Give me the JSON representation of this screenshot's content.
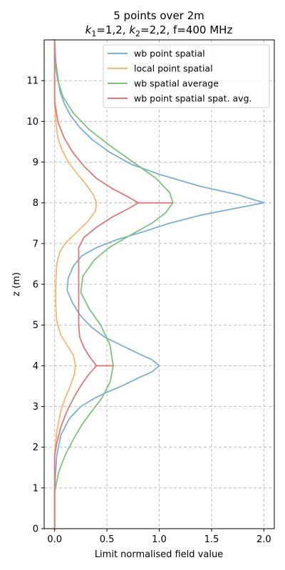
{
  "chart_data": {
    "type": "line",
    "orientation": "vertical",
    "title_line1": "5 points over 2m",
    "title_line2": "k1=1,2, k2=2,2, f=400 MHz",
    "title_parts": {
      "prefix": "",
      "k1_base": "k",
      "k1_sub": "1",
      "k1_value": "=1,2, ",
      "k2_base": "k",
      "k2_sub": "2",
      "k2_value": "=2,2, f=400 MHz"
    },
    "xlabel": "Limit normalised field value",
    "ylabel": "z (m)",
    "xlim": [
      -0.1,
      2.1
    ],
    "ylim": [
      0,
      12
    ],
    "xticks": [
      0.0,
      0.5,
      1.0,
      1.5,
      2.0
    ],
    "xtick_labels": [
      "0.0",
      "0.5",
      "1.0",
      "1.5",
      "2.0"
    ],
    "yticks": [
      0,
      1,
      2,
      3,
      4,
      5,
      6,
      7,
      8,
      9,
      10,
      11
    ],
    "ytick_labels": [
      "0",
      "1",
      "2",
      "3",
      "4",
      "5",
      "6",
      "7",
      "8",
      "9",
      "10",
      "11"
    ],
    "grid": true,
    "legend_position": "top-right",
    "series": [
      {
        "name": "wb point spatial",
        "color": "#7aaed3",
        "points": [
          [
            0.0,
            0
          ],
          [
            0.0,
            1
          ],
          [
            0.02,
            1.8
          ],
          [
            0.06,
            2.3
          ],
          [
            0.14,
            2.7
          ],
          [
            0.25,
            3.0
          ],
          [
            0.38,
            3.2
          ],
          [
            0.5,
            3.35
          ],
          [
            0.64,
            3.5
          ],
          [
            0.8,
            3.7
          ],
          [
            0.93,
            3.85
          ],
          [
            1.0,
            4.0
          ],
          [
            0.93,
            4.15
          ],
          [
            0.8,
            4.3
          ],
          [
            0.64,
            4.5
          ],
          [
            0.48,
            4.7
          ],
          [
            0.35,
            4.95
          ],
          [
            0.24,
            5.25
          ],
          [
            0.17,
            5.55
          ],
          [
            0.12,
            5.85
          ],
          [
            0.13,
            6.15
          ],
          [
            0.18,
            6.45
          ],
          [
            0.26,
            6.7
          ],
          [
            0.4,
            6.9
          ],
          [
            0.6,
            7.1
          ],
          [
            0.86,
            7.3
          ],
          [
            1.1,
            7.5
          ],
          [
            1.4,
            7.7
          ],
          [
            1.7,
            7.85
          ],
          [
            2.0,
            8.0
          ],
          [
            1.75,
            8.2
          ],
          [
            1.4,
            8.4
          ],
          [
            1.0,
            8.7
          ],
          [
            0.73,
            8.95
          ],
          [
            0.52,
            9.25
          ],
          [
            0.36,
            9.55
          ],
          [
            0.24,
            9.85
          ],
          [
            0.15,
            10.15
          ],
          [
            0.09,
            10.45
          ],
          [
            0.05,
            10.75
          ],
          [
            0.03,
            11.1
          ],
          [
            0.01,
            11.5
          ],
          [
            0.0,
            12.0
          ]
        ]
      },
      {
        "name": "local point spatial",
        "color": "#fbb572",
        "points": [
          [
            0.0,
            0
          ],
          [
            0.0,
            1.8
          ],
          [
            0.02,
            2.4
          ],
          [
            0.06,
            2.9
          ],
          [
            0.1,
            3.2
          ],
          [
            0.15,
            3.5
          ],
          [
            0.19,
            3.8
          ],
          [
            0.2,
            4.0
          ],
          [
            0.18,
            4.25
          ],
          [
            0.12,
            4.5
          ],
          [
            0.06,
            4.75
          ],
          [
            0.02,
            5.1
          ],
          [
            0.01,
            5.5
          ],
          [
            0.01,
            6.0
          ],
          [
            0.02,
            6.5
          ],
          [
            0.05,
            6.8
          ],
          [
            0.1,
            7.0
          ],
          [
            0.2,
            7.25
          ],
          [
            0.32,
            7.55
          ],
          [
            0.39,
            7.8
          ],
          [
            0.4,
            8.0
          ],
          [
            0.37,
            8.2
          ],
          [
            0.3,
            8.45
          ],
          [
            0.22,
            8.7
          ],
          [
            0.13,
            9.0
          ],
          [
            0.07,
            9.3
          ],
          [
            0.03,
            9.6
          ],
          [
            0.01,
            10.0
          ],
          [
            0.0,
            10.5
          ],
          [
            0.0,
            12.0
          ]
        ]
      },
      {
        "name": "wb spatial average",
        "color": "#7cc47c",
        "points": [
          [
            0.0,
            0
          ],
          [
            0.0,
            0.9
          ],
          [
            0.04,
            1.4
          ],
          [
            0.1,
            1.8
          ],
          [
            0.18,
            2.2
          ],
          [
            0.26,
            2.55
          ],
          [
            0.36,
            2.9
          ],
          [
            0.45,
            3.2
          ],
          [
            0.53,
            3.6
          ],
          [
            0.56,
            4.0
          ],
          [
            0.53,
            4.5
          ],
          [
            0.44,
            5.0
          ],
          [
            0.33,
            5.4
          ],
          [
            0.25,
            5.8
          ],
          [
            0.27,
            6.2
          ],
          [
            0.38,
            6.6
          ],
          [
            0.52,
            6.9
          ],
          [
            0.72,
            7.2
          ],
          [
            0.93,
            7.5
          ],
          [
            1.06,
            7.75
          ],
          [
            1.13,
            8.0
          ],
          [
            1.1,
            8.25
          ],
          [
            0.97,
            8.6
          ],
          [
            0.75,
            9.0
          ],
          [
            0.53,
            9.4
          ],
          [
            0.33,
            9.8
          ],
          [
            0.18,
            10.2
          ],
          [
            0.08,
            10.6
          ],
          [
            0.03,
            11.0
          ],
          [
            0.0,
            11.5
          ],
          [
            0.0,
            12.0
          ]
        ]
      },
      {
        "name": "wb point spatial spat. avg.",
        "color": "#e37676",
        "points": [
          [
            0.0,
            0
          ],
          [
            0.0,
            1.8
          ],
          [
            0.02,
            2.1
          ],
          [
            0.06,
            2.5
          ],
          [
            0.12,
            2.9
          ],
          [
            0.19,
            3.25
          ],
          [
            0.26,
            3.55
          ],
          [
            0.33,
            3.8
          ],
          [
            0.4,
            4.0
          ],
          [
            0.56,
            4.0
          ],
          [
            0.4,
            4.0
          ],
          [
            0.34,
            4.2
          ],
          [
            0.28,
            4.45
          ],
          [
            0.24,
            4.7
          ],
          [
            0.23,
            5.0
          ],
          [
            0.23,
            5.5
          ],
          [
            0.23,
            6.0
          ],
          [
            0.23,
            6.5
          ],
          [
            0.23,
            6.9
          ],
          [
            0.28,
            7.15
          ],
          [
            0.4,
            7.4
          ],
          [
            0.55,
            7.65
          ],
          [
            0.7,
            7.85
          ],
          [
            0.8,
            8.0
          ],
          [
            1.13,
            8.0
          ],
          [
            0.8,
            8.0
          ],
          [
            0.7,
            8.15
          ],
          [
            0.55,
            8.35
          ],
          [
            0.4,
            8.6
          ],
          [
            0.28,
            8.9
          ],
          [
            0.17,
            9.25
          ],
          [
            0.09,
            9.6
          ],
          [
            0.03,
            10.0
          ],
          [
            0.0,
            10.5
          ],
          [
            0.0,
            12.0
          ]
        ]
      }
    ]
  }
}
